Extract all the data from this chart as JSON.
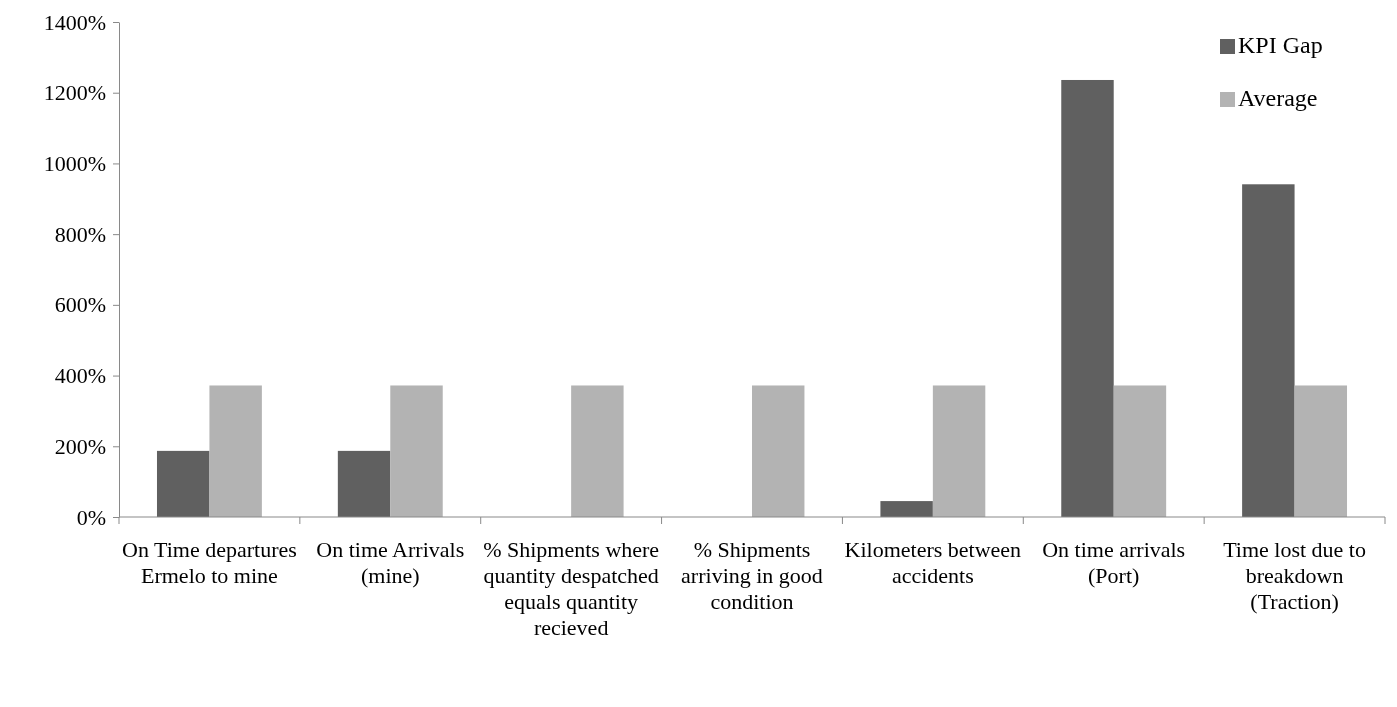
{
  "chart_data": {
    "type": "bar",
    "categories": [
      "On Time departures Ermelo to mine",
      "On time Arrivals (mine)",
      "% Shipments where quantity despatched equals quantity recieved",
      "% Shipments arriving in good condition",
      "Kilometers between accidents",
      "On time arrivals (Port)",
      "Time lost due to breakdown (Traction)"
    ],
    "series": [
      {
        "name": "KPI Gap",
        "color": "#606060",
        "values": [
          187,
          187,
          0,
          0,
          45,
          1236,
          941
        ]
      },
      {
        "name": "Average",
        "color": "#b3b3b3",
        "values": [
          372,
          372,
          372,
          372,
          372,
          372,
          372
        ]
      }
    ],
    "ylim": [
      0,
      1400
    ],
    "yticks": [
      {
        "value": 0,
        "label": "0%"
      },
      {
        "value": 200,
        "label": "200%"
      },
      {
        "value": 400,
        "label": "400%"
      },
      {
        "value": 600,
        "label": "600%"
      },
      {
        "value": 800,
        "label": "800%"
      },
      {
        "value": 1000,
        "label": "1000%"
      },
      {
        "value": 1200,
        "label": "1200%"
      },
      {
        "value": 1400,
        "label": "1400%"
      }
    ],
    "legend": "top right"
  }
}
